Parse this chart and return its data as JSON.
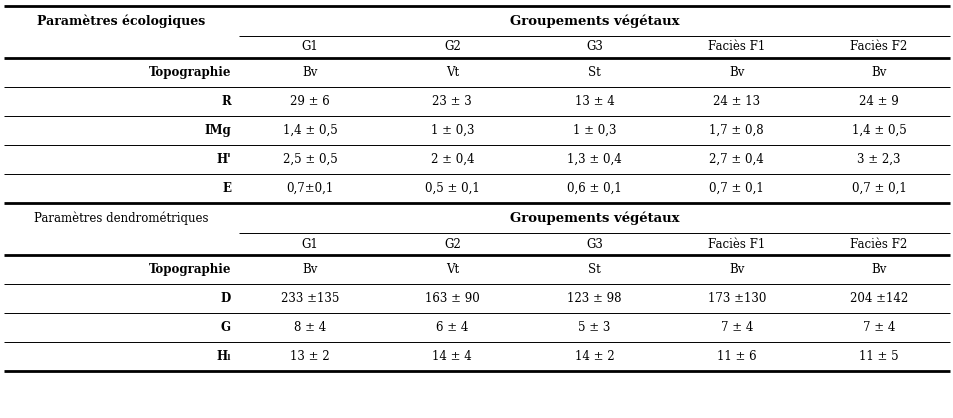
{
  "bg_color": "#ffffff",
  "section1": {
    "left_header": "Paramètres écologiques",
    "right_header": "Groupements végétaux",
    "col_headers": [
      "G1",
      "G2",
      "G3",
      "Faciès F1",
      "Faciès F2"
    ],
    "rows": [
      [
        "Topographie",
        "Bv",
        "Vt",
        "St",
        "Bv",
        "Bv"
      ],
      [
        "R",
        "29 ± 6",
        "23 ± 3",
        "13 ± 4",
        "24 ± 13",
        "24 ± 9"
      ],
      [
        "IMg",
        "1,4 ± 0,5",
        "1 ± 0,3",
        "1 ± 0,3",
        "1,7 ± 0,8",
        "1,4 ± 0,5"
      ],
      [
        "H'",
        "2,5 ± 0,5",
        "2 ± 0,4",
        "1,3 ± 0,4",
        "2,7 ± 0,4",
        "3 ± 2,3"
      ],
      [
        "E",
        "0,7±0,1",
        "0,5 ± 0,1",
        "0,6 ± 0,1",
        "0,7 ± 0,1",
        "0,7 ± 0,1"
      ]
    ],
    "bold_params": [
      "Topographie",
      "R",
      "IMg",
      "H'",
      "E"
    ]
  },
  "section2": {
    "left_header": "Paramètres dendrométriques",
    "right_header": "Groupements végétaux",
    "col_headers": [
      "G1",
      "G2",
      "G3",
      "Faciès F1",
      "Faciès F2"
    ],
    "rows": [
      [
        "Topographie",
        "Bv",
        "Vt",
        "St",
        "Bv",
        "Bv"
      ],
      [
        "D",
        "233 ±135",
        "163 ± 90",
        "123 ± 98",
        "173 ±130",
        "204 ±142"
      ],
      [
        "G",
        "8 ± 4",
        "6 ± 4",
        "5 ± 3",
        "7 ± 4",
        "7 ± 4"
      ],
      [
        "Hₗ",
        "13 ± 2",
        "14 ± 4",
        "14 ± 2",
        "11 ± 6",
        "11 ± 5"
      ]
    ],
    "bold_params": [
      "Topographie",
      "D",
      "G",
      "Hₗ"
    ]
  },
  "font_size_header": 9.5,
  "font_size_cell": 8.5,
  "font_size_left_header": 9.0,
  "font_size_left_header2": 8.5,
  "thick_lw": 2.0,
  "thin_lw": 0.7,
  "text_color": "#000000"
}
